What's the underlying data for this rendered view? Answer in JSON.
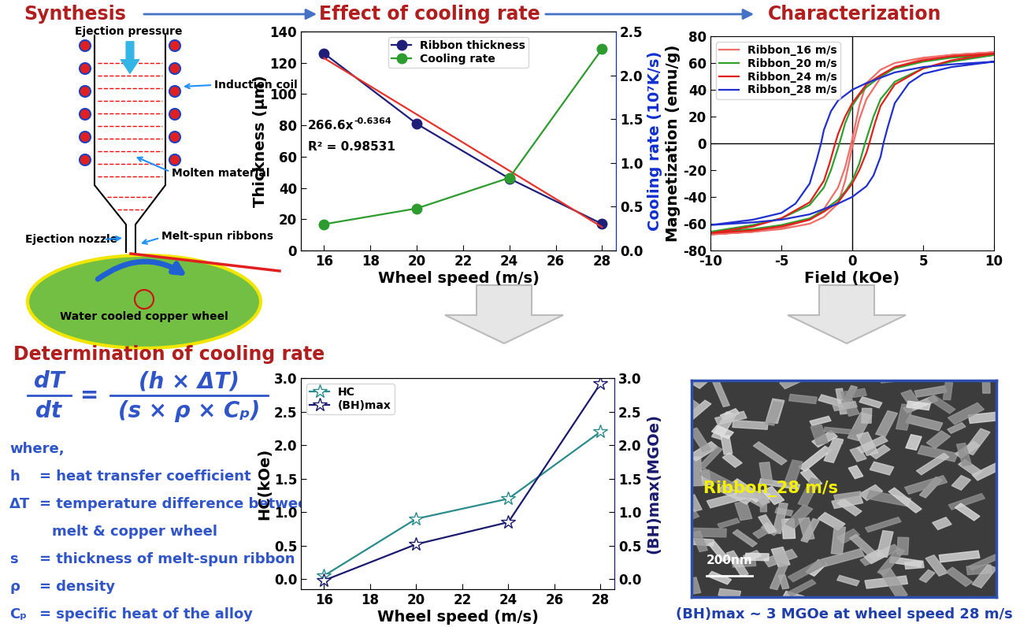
{
  "headers": [
    "Synthesis",
    "Effect of cooling rate",
    "Characterization"
  ],
  "diagram": {
    "ejection_pressure": "Ejection pressure",
    "induction_coil": "Induction coil",
    "molten_material": "Molten material",
    "ejection_nozzle": "Ejection nozzle",
    "ribbons": "Melt-spun ribbons",
    "wheel": "Water cooled copper wheel"
  },
  "formula": {
    "heading": "Determination of cooling rate",
    "lhs_numerator": "dT",
    "lhs_denominator": "dt",
    "equals": "=",
    "rhs_numerator": "(h × ΔT)",
    "rhs_denominator": "(s × ρ × Cₚ)",
    "where": "where,",
    "definitions": [
      {
        "symbol": "h",
        "lines": [
          "= heat transfer coefficient"
        ]
      },
      {
        "symbol": "ΔT",
        "lines": [
          "= temperature difference between",
          "melt & copper wheel"
        ]
      },
      {
        "symbol": "s",
        "lines": [
          "= thickness of melt-spun ribbon"
        ]
      },
      {
        "symbol": "ρ",
        "lines": [
          "= density"
        ]
      },
      {
        "symbol": "Cₚ",
        "lines": [
          "= specific heat of the alloy"
        ]
      }
    ]
  },
  "chart_data": [
    {
      "type": "line",
      "x": [
        16,
        20,
        24,
        28
      ],
      "xlim": [
        15,
        28.6
      ],
      "xticks": [
        16,
        18,
        20,
        22,
        24,
        26,
        28
      ],
      "ylim": [
        0,
        140
      ],
      "yticks": [
        0,
        20,
        40,
        60,
        80,
        100,
        120,
        140
      ],
      "y2lim": [
        0,
        2.5
      ],
      "y2ticks": [
        {
          "value": 0,
          "label": "0.0"
        },
        0.5,
        {
          "value": 1,
          "label": "1.0"
        },
        1.5,
        {
          "value": 2,
          "label": "2.0"
        },
        2.5
      ],
      "x_label": "Wheel speed (m/s)",
      "y_label": "Thickness (μm)",
      "y2_label": "Cooling rate (10⁷K/s)",
      "legend": "upper center",
      "fit_equation": {
        "text": "266.6x",
        "exponent": "-0.6364"
      },
      "fit_r2": "R² = 0.98531",
      "series": [
        {
          "name": "Ribbon thickness",
          "color": "#1F1F7A",
          "marker": "circle",
          "line_style": "solid",
          "values": [
            126,
            81,
            46,
            17
          ]
        },
        {
          "name": "Cooling rate",
          "color": "#2E9B2E",
          "marker": "circle",
          "line_style": "solid",
          "axis": "y2",
          "values": [
            0.3,
            0.48,
            0.83,
            2.3
          ]
        },
        {
          "color": "#E8332A",
          "marker": "none",
          "line_style": "solid",
          "values": [
            123,
            87,
            51,
            15
          ]
        }
      ]
    },
    {
      "type": "line",
      "xlim": [
        -10,
        10
      ],
      "xticks": [
        -10,
        -5,
        0,
        5,
        10
      ],
      "ylim": [
        -80,
        80
      ],
      "yticks": [
        -80,
        -60,
        -40,
        -20,
        0,
        20,
        40,
        60,
        80
      ],
      "x_label": "Field (kOe)",
      "y_label": "Magnetization (emu/g)",
      "legend": "upper left",
      "series": [
        {
          "name": "Ribbon_16 m/s",
          "color": "#EE6F6A",
          "marker": "none",
          "line_style": "solid",
          "x": [
            10,
            7,
            5,
            3,
            2,
            1,
            0.5,
            0,
            -0.5,
            -1,
            -2,
            -3,
            -5,
            -7,
            -10,
            -10,
            -7,
            -5,
            -3,
            -2,
            -1,
            -0.5,
            0,
            0.5,
            1,
            2,
            3,
            5,
            7,
            10
          ],
          "values": [
            68,
            66,
            64,
            60,
            55,
            45,
            28,
            3,
            -18,
            -33,
            -49,
            -57,
            -63,
            -66,
            -68,
            -68,
            -66,
            -64,
            -60,
            -55,
            -45,
            -28,
            -3,
            18,
            33,
            49,
            57,
            63,
            66,
            68
          ]
        },
        {
          "name": "Ribbon_20 m/s",
          "color": "#2EA02E",
          "marker": "none",
          "line_style": "solid",
          "x": [
            10,
            7,
            5,
            3,
            2,
            1,
            0.5,
            0,
            -0.5,
            -0.9,
            -1.5,
            -2,
            -3,
            -5,
            -7,
            -10,
            -10,
            -7,
            -5,
            -3,
            -2,
            -1,
            -0.5,
            0,
            0.5,
            0.9,
            1.5,
            2,
            3,
            5,
            7,
            10
          ],
          "values": [
            66,
            64,
            61,
            56,
            50,
            42,
            36,
            28,
            15,
            0,
            -20,
            -33,
            -46,
            -56,
            -61,
            -66,
            -66,
            -64,
            -61,
            -56,
            -50,
            -42,
            -36,
            -28,
            -15,
            0,
            20,
            33,
            46,
            56,
            61,
            66
          ]
        },
        {
          "name": "Ribbon_24 m/s",
          "color": "#E0201C",
          "marker": "none",
          "line_style": "solid",
          "x": [
            10,
            7,
            5,
            3,
            2,
            1,
            0,
            -0.5,
            -1,
            -1.2,
            -1.6,
            -2,
            -3,
            -5,
            -7,
            -10,
            -10,
            -7,
            -5,
            -3,
            -2,
            -1,
            0,
            0.5,
            1,
            1.2,
            1.6,
            2,
            3,
            5,
            7,
            10
          ],
          "values": [
            67,
            65,
            62,
            57,
            51,
            44,
            30,
            20,
            7,
            0,
            -15,
            -28,
            -44,
            -56,
            -62,
            -67,
            -67,
            -65,
            -62,
            -57,
            -51,
            -44,
            -30,
            -20,
            -7,
            0,
            15,
            28,
            44,
            56,
            62,
            67
          ]
        },
        {
          "name": "Ribbon_28 m/s",
          "color": "#2030D0",
          "marker": "none",
          "line_style": "solid",
          "x": [
            10,
            7,
            5,
            3,
            2,
            1,
            0,
            -1,
            -1.5,
            -2,
            -2.2,
            -2.5,
            -3,
            -4,
            -5,
            -7,
            -10,
            -10,
            -7,
            -5,
            -3,
            -2,
            -1,
            0,
            1,
            1.5,
            2,
            2.2,
            2.5,
            3,
            4,
            5,
            7,
            10
          ],
          "values": [
            61,
            59,
            57,
            53,
            49,
            45,
            40,
            32,
            24,
            10,
            0,
            -12,
            -30,
            -45,
            -52,
            -57,
            -61,
            -61,
            -59,
            -57,
            -53,
            -49,
            -45,
            -40,
            -32,
            -24,
            -10,
            0,
            12,
            30,
            45,
            52,
            57,
            61
          ]
        }
      ]
    },
    {
      "type": "line",
      "x": [
        16,
        20,
        24,
        28
      ],
      "xlim": [
        15,
        28.6
      ],
      "xticks": [
        16,
        18,
        20,
        22,
        24,
        26,
        28
      ],
      "ylim": [
        -0.15,
        3.0
      ],
      "yticks": [
        {
          "value": 0,
          "label": "0.0"
        },
        0.5,
        {
          "value": 1,
          "label": "1.0"
        },
        1.5,
        {
          "value": 2,
          "label": "2.0"
        },
        2.5,
        {
          "value": 3,
          "label": "3.0"
        }
      ],
      "y2lim": [
        -0.15,
        3.0
      ],
      "y2ticks": [
        {
          "value": 0,
          "label": "0.0"
        },
        0.5,
        {
          "value": 1,
          "label": "1.0"
        },
        1.5,
        {
          "value": 2,
          "label": "2.0"
        },
        2.5,
        {
          "value": 3,
          "label": "3.0"
        }
      ],
      "x_label": "Wheel speed (m/s)",
      "y_label": "HC(kOe)",
      "y2_label": "(BH)max(MGOe)",
      "legend": "upper left",
      "series": [
        {
          "name": "HC",
          "color": "#2A8C8C",
          "marker": "star",
          "line_style": "solid",
          "values": [
            0.05,
            0.9,
            1.2,
            2.2
          ]
        },
        {
          "name": "(BH)max",
          "color": "#1A1A6E",
          "marker": "star",
          "line_style": "solid",
          "axis": "y2",
          "values": [
            -0.02,
            0.52,
            0.85,
            2.92
          ]
        }
      ]
    }
  ],
  "image": {
    "label": "Ribbon_28 m/s",
    "scale_bar": "200nm",
    "caption": "(BH)max ~ 3 MGOe at wheel speed 28 m/s"
  }
}
